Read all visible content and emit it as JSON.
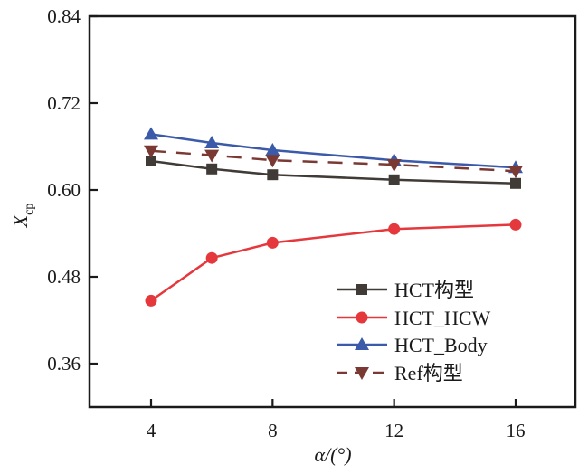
{
  "chart_data": {
    "type": "line",
    "title": "",
    "xlabel": "α/(°)",
    "ylabel": "X",
    "ylabel_subscript": "cp",
    "x": [
      4,
      6,
      8,
      12,
      16
    ],
    "xlim": [
      2,
      18
    ],
    "ylim": [
      0.3,
      0.84
    ],
    "xticks": [
      4,
      8,
      12,
      16
    ],
    "xtick_labels": [
      "4",
      "8",
      "12",
      "16"
    ],
    "yticks": [
      0.36,
      0.48,
      0.6,
      0.72,
      0.84
    ],
    "ytick_labels": [
      "0.36",
      "0.48",
      "0.60",
      "0.72",
      "0.84"
    ],
    "grid": false,
    "legend_position": "lower-right",
    "series": [
      {
        "name": "HCT构型",
        "color": "#403b37",
        "marker": "square",
        "dash": "solid",
        "values": [
          0.64,
          0.629,
          0.621,
          0.614,
          0.609
        ]
      },
      {
        "name": "HCT_HCW",
        "color": "#e5383d",
        "marker": "circle",
        "dash": "solid",
        "values": [
          0.447,
          0.506,
          0.527,
          0.546,
          0.552
        ]
      },
      {
        "name": "HCT_Body",
        "color": "#3b5aa9",
        "marker": "triangle-up",
        "dash": "solid",
        "values": [
          0.677,
          0.665,
          0.655,
          0.641,
          0.631
        ]
      },
      {
        "name": "Ref构型",
        "color": "#7b3933",
        "marker": "triangle-down",
        "dash": "dashed",
        "values": [
          0.654,
          0.648,
          0.641,
          0.635,
          0.626
        ]
      }
    ]
  }
}
